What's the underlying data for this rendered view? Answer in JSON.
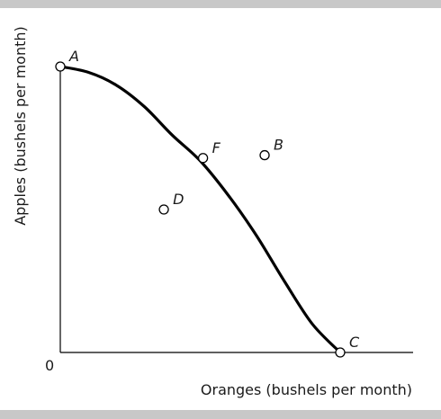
{
  "chart_data": {
    "type": "scatter",
    "title": "",
    "xlabel": "Oranges (bushels per month)",
    "ylabel": "Apples (bushels per month)",
    "origin_label": "0",
    "xlim": [
      0,
      100
    ],
    "ylim": [
      0,
      100
    ],
    "grid": false,
    "colors": {
      "ink": "#000000",
      "band": "#c8c8c8",
      "marker_fill": "#ffffff"
    },
    "curve": {
      "kind": "production-possibilities-frontier",
      "points": [
        {
          "x": 0,
          "y": 100
        },
        {
          "x": 10,
          "y": 98
        },
        {
          "x": 20,
          "y": 93.5
        },
        {
          "x": 30,
          "y": 86
        },
        {
          "x": 40,
          "y": 76
        },
        {
          "x": 50,
          "y": 67
        },
        {
          "x": 60,
          "y": 55
        },
        {
          "x": 70,
          "y": 41
        },
        {
          "x": 80,
          "y": 25
        },
        {
          "x": 90,
          "y": 10
        },
        {
          "x": 100,
          "y": 0
        }
      ]
    },
    "labeled_points": [
      {
        "label": "A",
        "x": 0,
        "y": 100,
        "label_side": "upper-right"
      },
      {
        "label": "F",
        "x": 51,
        "y": 68,
        "label_side": "upper-right"
      },
      {
        "label": "B",
        "x": 73,
        "y": 69,
        "label_side": "upper-right"
      },
      {
        "label": "D",
        "x": 37,
        "y": 50,
        "label_side": "upper-right"
      },
      {
        "label": "C",
        "x": 100,
        "y": 0,
        "label_side": "upper-right"
      }
    ]
  }
}
